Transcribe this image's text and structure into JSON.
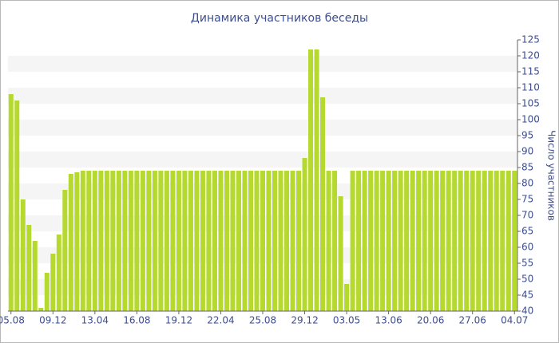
{
  "chart_data": {
    "type": "bar",
    "title": "Динамика участников беседы",
    "y_label": "Число участников",
    "categories": [
      "05.08",
      null,
      null,
      null,
      null,
      null,
      null,
      "09.12",
      null,
      null,
      null,
      null,
      null,
      null,
      "13.04",
      null,
      null,
      null,
      null,
      null,
      null,
      "16.08",
      null,
      null,
      null,
      null,
      null,
      null,
      "19.12",
      null,
      null,
      null,
      null,
      null,
      null,
      "22.04",
      null,
      null,
      null,
      null,
      null,
      null,
      "25.08",
      null,
      null,
      null,
      null,
      null,
      null,
      "29.12",
      null,
      null,
      null,
      null,
      null,
      null,
      "03.05",
      null,
      null,
      null,
      null,
      null,
      null,
      "13.06",
      null,
      null,
      null,
      null,
      null,
      null,
      "20.06",
      null,
      null,
      null,
      null,
      null,
      null,
      "27.06",
      null,
      null,
      null,
      null,
      null,
      null,
      "04.07"
    ],
    "values": [
      108,
      106,
      75,
      67,
      62,
      41,
      52,
      58,
      64,
      78,
      83,
      83.5,
      84,
      84,
      84,
      84,
      84,
      84,
      84,
      84,
      84,
      84,
      84,
      84,
      84,
      84,
      84,
      84,
      84,
      84,
      84,
      84,
      84,
      84,
      84,
      84,
      84,
      84,
      84,
      84,
      84,
      84,
      84,
      84,
      84,
      84,
      84,
      84,
      84,
      88,
      122,
      122,
      107,
      84,
      84,
      76,
      48.5,
      84,
      84,
      84,
      84,
      84,
      84,
      84,
      84,
      84,
      84,
      84,
      84,
      84,
      84,
      84,
      84,
      84,
      84,
      84,
      84,
      84,
      84,
      84,
      84,
      84,
      84,
      84,
      84
    ],
    "color": "#b5d92e",
    "ylim": [
      40,
      125
    ],
    "yticks": [
      40,
      45,
      50,
      55,
      60,
      65,
      70,
      75,
      80,
      85,
      90,
      95,
      100,
      105,
      110,
      115,
      120,
      125
    ],
    "grid": "bands",
    "y_axis_side": "right"
  }
}
